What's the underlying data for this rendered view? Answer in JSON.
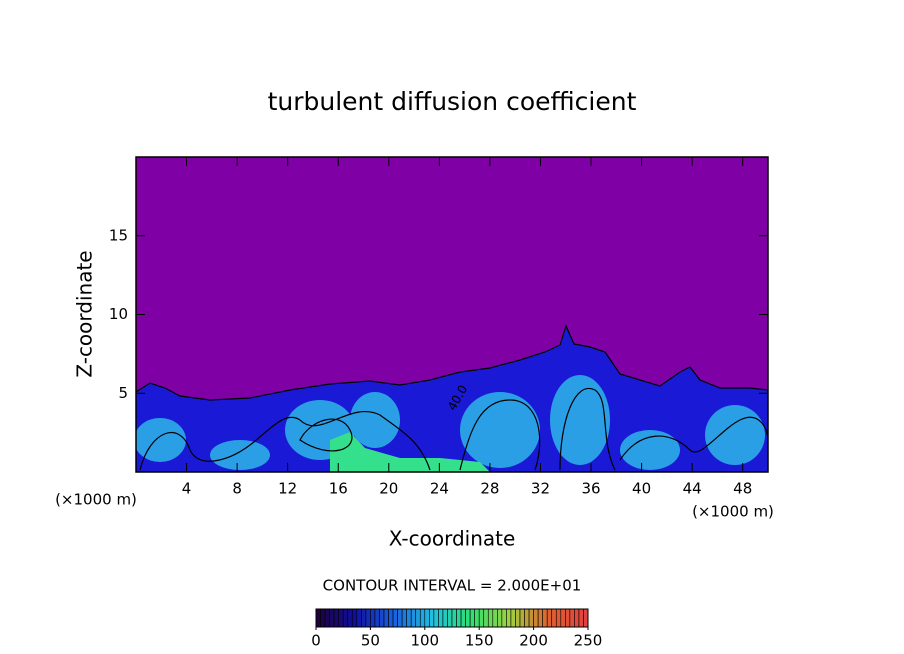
{
  "chart_data": {
    "type": "contour",
    "title": "turbulent diffusion coefficient",
    "x_label": "X-coordinate",
    "y_label": "Z-coordinate",
    "x_unit": "(×1000 m)",
    "x_unit_right": "(×1000 m)",
    "xlim": [
      0,
      50
    ],
    "ylim": [
      0,
      20
    ],
    "xticks": [
      4,
      8,
      12,
      16,
      20,
      24,
      28,
      32,
      36,
      40,
      44,
      48
    ],
    "yticks": [
      5,
      10,
      15
    ],
    "contour_interval_label": "CONTOUR INTERVAL = 2.000E+01",
    "contour_labels": [
      "40.0"
    ],
    "colorbar": {
      "clim": [
        0,
        250
      ],
      "ticks": [
        0,
        50,
        100,
        150,
        200,
        250
      ],
      "colormap": [
        "#20003a",
        "#1010a0",
        "#1a60e0",
        "#20c0e0",
        "#30e070",
        "#a0d040",
        "#e06030",
        "#e04040"
      ]
    }
  }
}
